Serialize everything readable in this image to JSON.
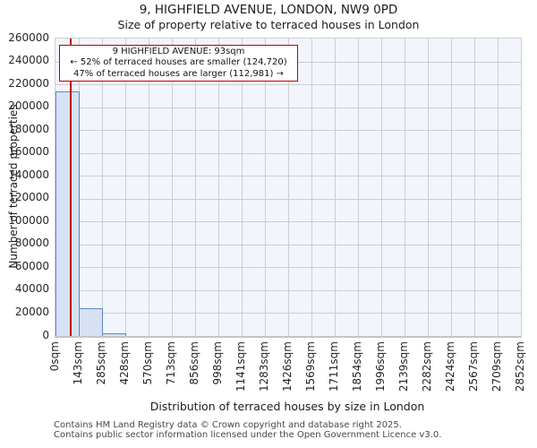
{
  "chart_data": {
    "type": "bar",
    "title": "9, HIGHFIELD AVENUE, LONDON, NW9 0PD",
    "subtitle": "Size of property relative to terraced houses in London",
    "xlabel": "Distribution of terraced houses by size in London",
    "ylabel": "Number of terraced properties",
    "x_tick_labels": [
      "0sqm",
      "143sqm",
      "285sqm",
      "428sqm",
      "570sqm",
      "713sqm",
      "856sqm",
      "998sqm",
      "1141sqm",
      "1283sqm",
      "1426sqm",
      "1569sqm",
      "1711sqm",
      "1854sqm",
      "1996sqm",
      "2139sqm",
      "2282sqm",
      "2424sqm",
      "2567sqm",
      "2709sqm",
      "2852sqm"
    ],
    "y_ticks": [
      0,
      20000,
      40000,
      60000,
      80000,
      100000,
      120000,
      140000,
      160000,
      180000,
      200000,
      220000,
      240000,
      260000
    ],
    "ylim": [
      0,
      260000
    ],
    "xlim_sqm": [
      0,
      2852
    ],
    "n_bins": 20,
    "values": [
      213800,
      24300,
      2300,
      0,
      0,
      0,
      0,
      0,
      0,
      0,
      0,
      0,
      0,
      0,
      0,
      0,
      0,
      0,
      0,
      0
    ],
    "grid": true,
    "legend": false,
    "marker": {
      "label": "9 HIGHFIELD AVENUE",
      "value_sqm": 93
    },
    "stats": {
      "pct_smaller": 52,
      "count_smaller": "124,720",
      "pct_larger": 47,
      "count_larger": "112,981"
    },
    "colors": {
      "bar_fill": "#d7e1f3",
      "bar_edge": "#5c87c5",
      "marker_red": "#c00000",
      "plot_bg": "#f2f5fb",
      "grid": "#cdced4"
    }
  },
  "annotation": {
    "line1": "9 HIGHFIELD AVENUE: 93sqm",
    "line2": "← 52% of terraced houses are smaller (124,720)",
    "line3": "47% of terraced houses are larger (112,981) →"
  },
  "footer": {
    "line1": "Contains HM Land Registry data © Crown copyright and database right 2025.",
    "line2": "Contains public sector information licensed under the Open Government Licence v3.0."
  }
}
